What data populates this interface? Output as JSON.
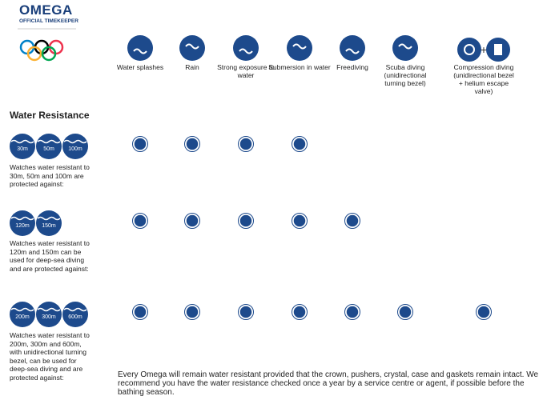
{
  "brand": {
    "name": "OMEGA",
    "tagline": "OFFICIAL TIMEKEEPER"
  },
  "activities": [
    "Water splashes",
    "Rain",
    "Strong exposure to water",
    "Submersion in water",
    "Freediving",
    "Scuba diving (unidirectional turning bezel)",
    "Compression diving (unidirectional bezel + helium escape valve)"
  ],
  "section_title": "Water Resistance",
  "rows": [
    {
      "badges": [
        "30m",
        "50m",
        "100m"
      ],
      "description": "Watches water resistant to 30m, 50m and 100m are protected against:",
      "protected": [
        true,
        true,
        true,
        true,
        false,
        false,
        false
      ]
    },
    {
      "badges": [
        "120m",
        "150m"
      ],
      "description": "Watches water resistant to 120m and 150m can be used for deep-sea diving and are protected against:",
      "protected": [
        true,
        true,
        true,
        true,
        true,
        false,
        false
      ]
    },
    {
      "badges": [
        "200m",
        "300m",
        "600m"
      ],
      "description": "Watches water resistant to 200m, 300m and 600m, with unidirectional turning bezel, can be used for deep-sea diving and are protected against:",
      "protected": [
        true,
        true,
        true,
        true,
        true,
        true,
        true
      ]
    }
  ],
  "footnote": "Every Omega will remain water resistant provided that the crown, pushers, crystal, case and gaskets remain intact. We recommend you have the water resistance checked once a year by a service centre or agent, if possible before the bathing season."
}
